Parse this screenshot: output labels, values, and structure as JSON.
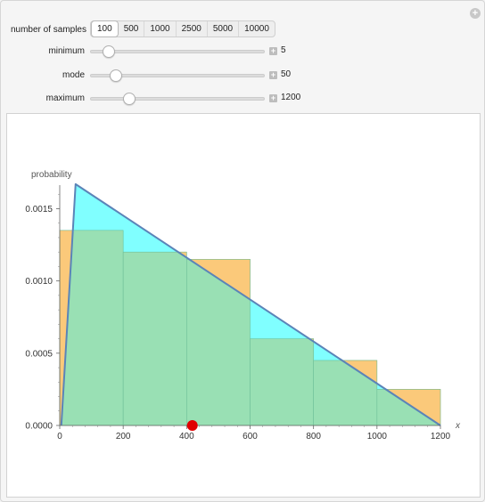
{
  "controls": {
    "samples": {
      "label": "number of samples",
      "options": [
        "100",
        "500",
        "1000",
        "2500",
        "5000",
        "10000"
      ],
      "selected": "100"
    },
    "minimum": {
      "label": "minimum",
      "value": "5",
      "fraction": 0.04
    },
    "mode": {
      "label": "mode",
      "value": "50",
      "fraction": 0.08
    },
    "maximum": {
      "label": "maximum",
      "value": "1200",
      "fraction": 0.16
    }
  },
  "chart_data": {
    "type": "bar",
    "ylabel": "probability",
    "xlabel": "x",
    "xlim": [
      0,
      1200
    ],
    "ylim": [
      0,
      0.0017
    ],
    "xticks": [
      "0",
      "200",
      "400",
      "600",
      "800",
      "1000",
      "1200"
    ],
    "yticks": [
      "0.0000",
      "0.0005",
      "0.0010",
      "0.0015"
    ],
    "histogram_bins": [
      {
        "x0": 0,
        "x1": 200,
        "value": 0.00135
      },
      {
        "x0": 200,
        "x1": 400,
        "value": 0.0012
      },
      {
        "x0": 400,
        "x1": 600,
        "value": 0.00115
      },
      {
        "x0": 600,
        "x1": 800,
        "value": 0.0006
      },
      {
        "x0": 800,
        "x1": 1000,
        "value": 0.00045
      },
      {
        "x0": 1000,
        "x1": 1200,
        "value": 0.00025
      }
    ],
    "pdf": {
      "min": 5,
      "mode": 50,
      "max": 1200,
      "peak": 0.00167
    },
    "mean_marker": 418,
    "colors": {
      "histogram": "#fbc97a",
      "pdf_fill": "#80ffff",
      "overlap": "#99e0b4",
      "pdf_line": "#5b84b8",
      "marker": "#e00000"
    }
  }
}
